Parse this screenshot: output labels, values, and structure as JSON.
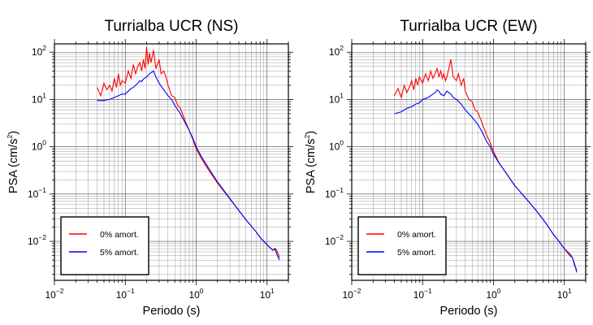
{
  "chart_data": [
    {
      "type": "line",
      "title": "Turrialba UCR (NS)",
      "xlabel": "Periodo (s)",
      "ylabel_base": "PSA (cm/s",
      "ylabel_sup": "2",
      "ylabel_close": ")",
      "xscale": "log",
      "yscale": "log",
      "xlim": [
        0.01,
        20
      ],
      "ylim": [
        0.0015,
        150
      ],
      "x_ticks": [
        {
          "base": "10",
          "exp": "−2"
        },
        {
          "base": "10",
          "exp": "−1"
        },
        {
          "base": "10",
          "exp": "0"
        },
        {
          "base": "10",
          "exp": "1"
        }
      ],
      "y_ticks": [
        {
          "base": "10",
          "exp": "−2"
        },
        {
          "base": "10",
          "exp": "−1"
        },
        {
          "base": "10",
          "exp": "0"
        },
        {
          "base": "10",
          "exp": "1"
        },
        {
          "base": "10",
          "exp": "2"
        }
      ],
      "grid": true,
      "legend_position": "bottom-left",
      "series": [
        {
          "name": "0% amort.",
          "color": "#ff0000",
          "x": [
            0.04,
            0.045,
            0.05,
            0.055,
            0.06,
            0.065,
            0.07,
            0.075,
            0.08,
            0.085,
            0.09,
            0.1,
            0.11,
            0.12,
            0.13,
            0.14,
            0.15,
            0.16,
            0.17,
            0.18,
            0.19,
            0.2,
            0.21,
            0.22,
            0.23,
            0.25,
            0.27,
            0.3,
            0.32,
            0.35,
            0.38,
            0.4,
            0.45,
            0.5,
            0.55,
            0.6,
            0.7,
            0.8,
            0.9,
            1.0,
            1.1,
            1.2,
            1.5,
            2,
            3,
            4,
            5,
            6,
            7,
            8,
            10,
            12,
            13,
            14,
            15
          ],
          "y": [
            18,
            12,
            22,
            16,
            20,
            15,
            28,
            18,
            35,
            20,
            25,
            22,
            40,
            28,
            55,
            35,
            50,
            60,
            40,
            70,
            45,
            130,
            55,
            95,
            60,
            110,
            45,
            70,
            35,
            40,
            28,
            20,
            12,
            11,
            7.5,
            6.5,
            3.5,
            2.2,
            1.4,
            0.9,
            0.7,
            0.55,
            0.32,
            0.17,
            0.078,
            0.045,
            0.029,
            0.021,
            0.016,
            0.012,
            0.0085,
            0.0065,
            0.0072,
            0.006,
            0.0045
          ]
        },
        {
          "name": "5% amort.",
          "color": "#0000ff",
          "x": [
            0.04,
            0.05,
            0.06,
            0.07,
            0.08,
            0.09,
            0.1,
            0.11,
            0.12,
            0.13,
            0.14,
            0.15,
            0.16,
            0.17,
            0.18,
            0.2,
            0.22,
            0.25,
            0.27,
            0.3,
            0.35,
            0.4,
            0.45,
            0.5,
            0.6,
            0.7,
            0.8,
            0.9,
            1.0,
            1.2,
            1.5,
            2,
            3,
            4,
            5,
            6,
            7,
            8,
            10,
            12,
            13,
            14,
            15
          ],
          "y": [
            9.5,
            9.5,
            10,
            11,
            12,
            13,
            13,
            15,
            17,
            18,
            20,
            22,
            25,
            24,
            27,
            30,
            35,
            40,
            30,
            22,
            16,
            12,
            10,
            7.5,
            5,
            3.2,
            2.2,
            1.5,
            1.0,
            0.6,
            0.35,
            0.18,
            0.08,
            0.045,
            0.029,
            0.021,
            0.016,
            0.012,
            0.0085,
            0.0065,
            0.0068,
            0.005,
            0.004
          ]
        }
      ]
    },
    {
      "type": "line",
      "title": "Turrialba UCR (EW)",
      "xlabel": "Periodo (s)",
      "ylabel_base": "PSA (cm/s",
      "ylabel_sup": "2",
      "ylabel_close": ")",
      "xscale": "log",
      "yscale": "log",
      "xlim": [
        0.01,
        20
      ],
      "ylim": [
        0.0015,
        150
      ],
      "x_ticks": [
        {
          "base": "10",
          "exp": "−2"
        },
        {
          "base": "10",
          "exp": "−1"
        },
        {
          "base": "10",
          "exp": "0"
        },
        {
          "base": "10",
          "exp": "1"
        }
      ],
      "y_ticks": [
        {
          "base": "10",
          "exp": "−2"
        },
        {
          "base": "10",
          "exp": "−1"
        },
        {
          "base": "10",
          "exp": "0"
        },
        {
          "base": "10",
          "exp": "1"
        },
        {
          "base": "10",
          "exp": "2"
        }
      ],
      "grid": true,
      "legend_position": "bottom-left",
      "series": [
        {
          "name": "0% amort.",
          "color": "#ff0000",
          "x": [
            0.04,
            0.045,
            0.05,
            0.055,
            0.06,
            0.065,
            0.07,
            0.075,
            0.08,
            0.085,
            0.09,
            0.1,
            0.11,
            0.12,
            0.13,
            0.14,
            0.15,
            0.16,
            0.17,
            0.18,
            0.19,
            0.2,
            0.21,
            0.22,
            0.23,
            0.25,
            0.27,
            0.3,
            0.32,
            0.35,
            0.38,
            0.4,
            0.45,
            0.5,
            0.55,
            0.6,
            0.7,
            0.8,
            0.9,
            1.0,
            1.1,
            1.2,
            1.5,
            2,
            3,
            4,
            5,
            6,
            7,
            8,
            10,
            12,
            13,
            14,
            15
          ],
          "y": [
            12,
            17,
            11,
            20,
            14,
            18,
            25,
            16,
            28,
            20,
            30,
            22,
            35,
            25,
            40,
            28,
            35,
            45,
            30,
            40,
            28,
            35,
            25,
            30,
            40,
            70,
            30,
            25,
            35,
            20,
            28,
            15,
            10,
            9,
            6,
            5.5,
            3,
            1.8,
            1.2,
            0.8,
            0.6,
            0.45,
            0.28,
            0.15,
            0.075,
            0.045,
            0.029,
            0.02,
            0.014,
            0.011,
            0.007,
            0.0055,
            0.0045,
            0.003,
            0.0025
          ]
        },
        {
          "name": "5% amort.",
          "color": "#0000ff",
          "x": [
            0.04,
            0.05,
            0.06,
            0.07,
            0.08,
            0.09,
            0.1,
            0.11,
            0.12,
            0.13,
            0.14,
            0.15,
            0.16,
            0.17,
            0.18,
            0.2,
            0.22,
            0.25,
            0.27,
            0.3,
            0.35,
            0.4,
            0.45,
            0.5,
            0.6,
            0.7,
            0.8,
            0.9,
            1.0,
            1.2,
            1.5,
            2,
            3,
            4,
            5,
            6,
            7,
            8,
            10,
            12,
            13,
            14,
            15
          ],
          "y": [
            5,
            5.5,
            6.5,
            7,
            8,
            8.5,
            10,
            10.5,
            11,
            12,
            13,
            14,
            16,
            15,
            13,
            12,
            15,
            13,
            11,
            10,
            8,
            6,
            5,
            4.2,
            3,
            2,
            1.3,
            1.0,
            0.7,
            0.45,
            0.28,
            0.15,
            0.075,
            0.045,
            0.029,
            0.02,
            0.014,
            0.011,
            0.007,
            0.005,
            0.0045,
            0.0032,
            0.0022
          ]
        }
      ]
    }
  ]
}
